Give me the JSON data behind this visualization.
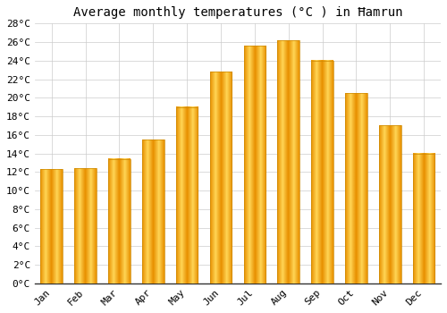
{
  "title": "Average monthly temperatures (°C ) in Ħamrun",
  "months": [
    "Jan",
    "Feb",
    "Mar",
    "Apr",
    "May",
    "Jun",
    "Jul",
    "Aug",
    "Sep",
    "Oct",
    "Nov",
    "Dec"
  ],
  "temperatures": [
    12.3,
    12.4,
    13.4,
    15.5,
    19.0,
    22.8,
    25.6,
    26.2,
    24.0,
    20.5,
    17.0,
    14.0
  ],
  "bar_color_center": "#FFD040",
  "bar_color_edge": "#F5A800",
  "background_color": "#FFFFFF",
  "grid_color": "#CCCCCC",
  "ylim": [
    0,
    28
  ],
  "ytick_step": 2,
  "title_fontsize": 10,
  "tick_fontsize": 8,
  "font_family": "monospace",
  "bar_width": 0.65
}
